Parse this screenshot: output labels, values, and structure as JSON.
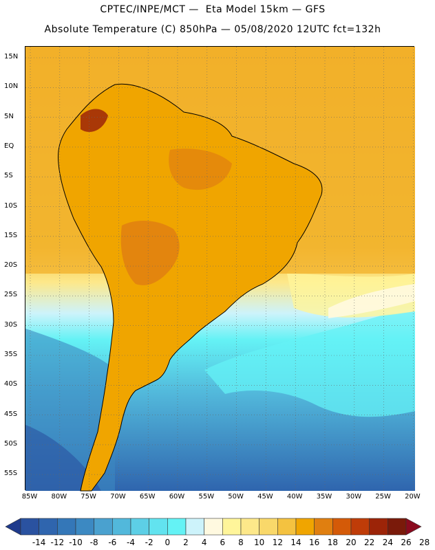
{
  "header": {
    "line1": "CPTEC/INPE/MCT —  Eta Model 15km — GFS",
    "line2": "Absolute Temperature (C) 850hPa — 05/08/2020 12UTC fct=132h"
  },
  "map": {
    "lat_labels": [
      "15N",
      "10N",
      "5N",
      "EQ",
      "5S",
      "10S",
      "15S",
      "20S",
      "25S",
      "30S",
      "35S",
      "40S",
      "45S",
      "50S",
      "55S"
    ],
    "lon_labels": [
      "85W",
      "80W",
      "75W",
      "70W",
      "65W",
      "60W",
      "55W",
      "50W",
      "45W",
      "40W",
      "35W",
      "30W",
      "25W",
      "20W"
    ],
    "grid": "dotted",
    "coastlines": true,
    "land_color": "#f0a500",
    "ocean_warm_color": "#f2b02a",
    "cold_ocean_color": "#64f2f5"
  },
  "colorbar": {
    "labels": [
      "-14",
      "-12",
      "-10",
      "-8",
      "-6",
      "-4",
      "-2",
      "0",
      "2",
      "4",
      "6",
      "8",
      "10",
      "12",
      "14",
      "16",
      "18",
      "20",
      "22",
      "24",
      "26",
      "28"
    ],
    "colors": [
      "#1e3a8c",
      "#2a52a0",
      "#2f65ae",
      "#3477b8",
      "#3c89c2",
      "#4aa1cf",
      "#52b8db",
      "#5dcfe6",
      "#62e3ef",
      "#64f2f5",
      "#cdf3fb",
      "#fff9e0",
      "#fff59a",
      "#fde88a",
      "#f9d86a",
      "#f4c240",
      "#f0a500",
      "#e07f10",
      "#d45a08",
      "#bf3c08",
      "#9c2408",
      "#7a1a0a",
      "#8a0a1e"
    ]
  }
}
